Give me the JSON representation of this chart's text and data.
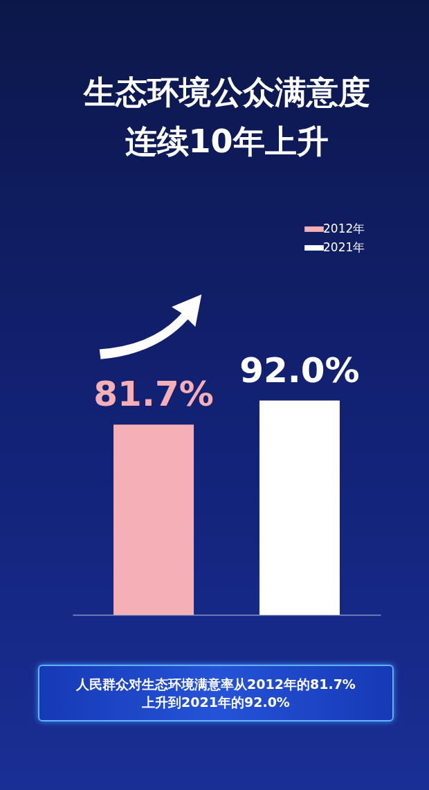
{
  "chart_data": {
    "type": "bar",
    "title": "生态环境公众满意度",
    "subtitle": "连续10年上升",
    "categories": [
      null,
      null
    ],
    "stacked": true,
    "series": [
      {
        "name": "2012年",
        "color": "#f4b0b6",
        "values": [
          81.7,
          null
        ],
        "value_labels": [
          "81.7%",
          null
        ]
      },
      {
        "name": "2021年",
        "color": "#ffffff",
        "values": [
          null,
          92.0
        ],
        "value_labels": [
          null,
          "92.0%"
        ]
      }
    ],
    "legend": "top right",
    "annotations": [
      "人民群众对生态环境满意率从2012年的81.7%",
      "上升到2021年的92.0%"
    ]
  }
}
